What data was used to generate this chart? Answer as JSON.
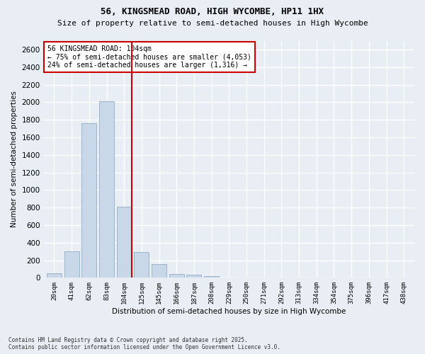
{
  "title_line1": "56, KINGSMEAD ROAD, HIGH WYCOMBE, HP11 1HX",
  "title_line2": "Size of property relative to semi-detached houses in High Wycombe",
  "xlabel": "Distribution of semi-detached houses by size in High Wycombe",
  "ylabel": "Number of semi-detached properties",
  "footnote": "Contains HM Land Registry data © Crown copyright and database right 2025.\nContains public sector information licensed under the Open Government Licence v3.0.",
  "bar_labels": [
    "20sqm",
    "41sqm",
    "62sqm",
    "83sqm",
    "104sqm",
    "125sqm",
    "145sqm",
    "166sqm",
    "187sqm",
    "208sqm",
    "229sqm",
    "250sqm",
    "271sqm",
    "292sqm",
    "313sqm",
    "334sqm",
    "354sqm",
    "375sqm",
    "396sqm",
    "417sqm",
    "438sqm"
  ],
  "bar_values": [
    50,
    300,
    1760,
    2010,
    810,
    290,
    155,
    40,
    35,
    20,
    0,
    0,
    0,
    0,
    0,
    0,
    0,
    0,
    0,
    0,
    0
  ],
  "highlight_index": 4,
  "bar_color": "#c8d8e8",
  "bar_edge_color": "#9ab4cc",
  "highlight_line_color": "#cc0000",
  "annotation_title": "56 KINGSMEAD ROAD: 104sqm",
  "annotation_line1": "← 75% of semi-detached houses are smaller (4,053)",
  "annotation_line2": "24% of semi-detached houses are larger (1,316) →",
  "annotation_box_color": "#ffffff",
  "annotation_box_edge": "#cc0000",
  "ylim": [
    0,
    2700
  ],
  "yticks": [
    0,
    200,
    400,
    600,
    800,
    1000,
    1200,
    1400,
    1600,
    1800,
    2000,
    2200,
    2400,
    2600
  ],
  "bg_color": "#e8eef4",
  "grid_color": "#ffffff",
  "title_fontsize": 9,
  "subtitle_fontsize": 8
}
